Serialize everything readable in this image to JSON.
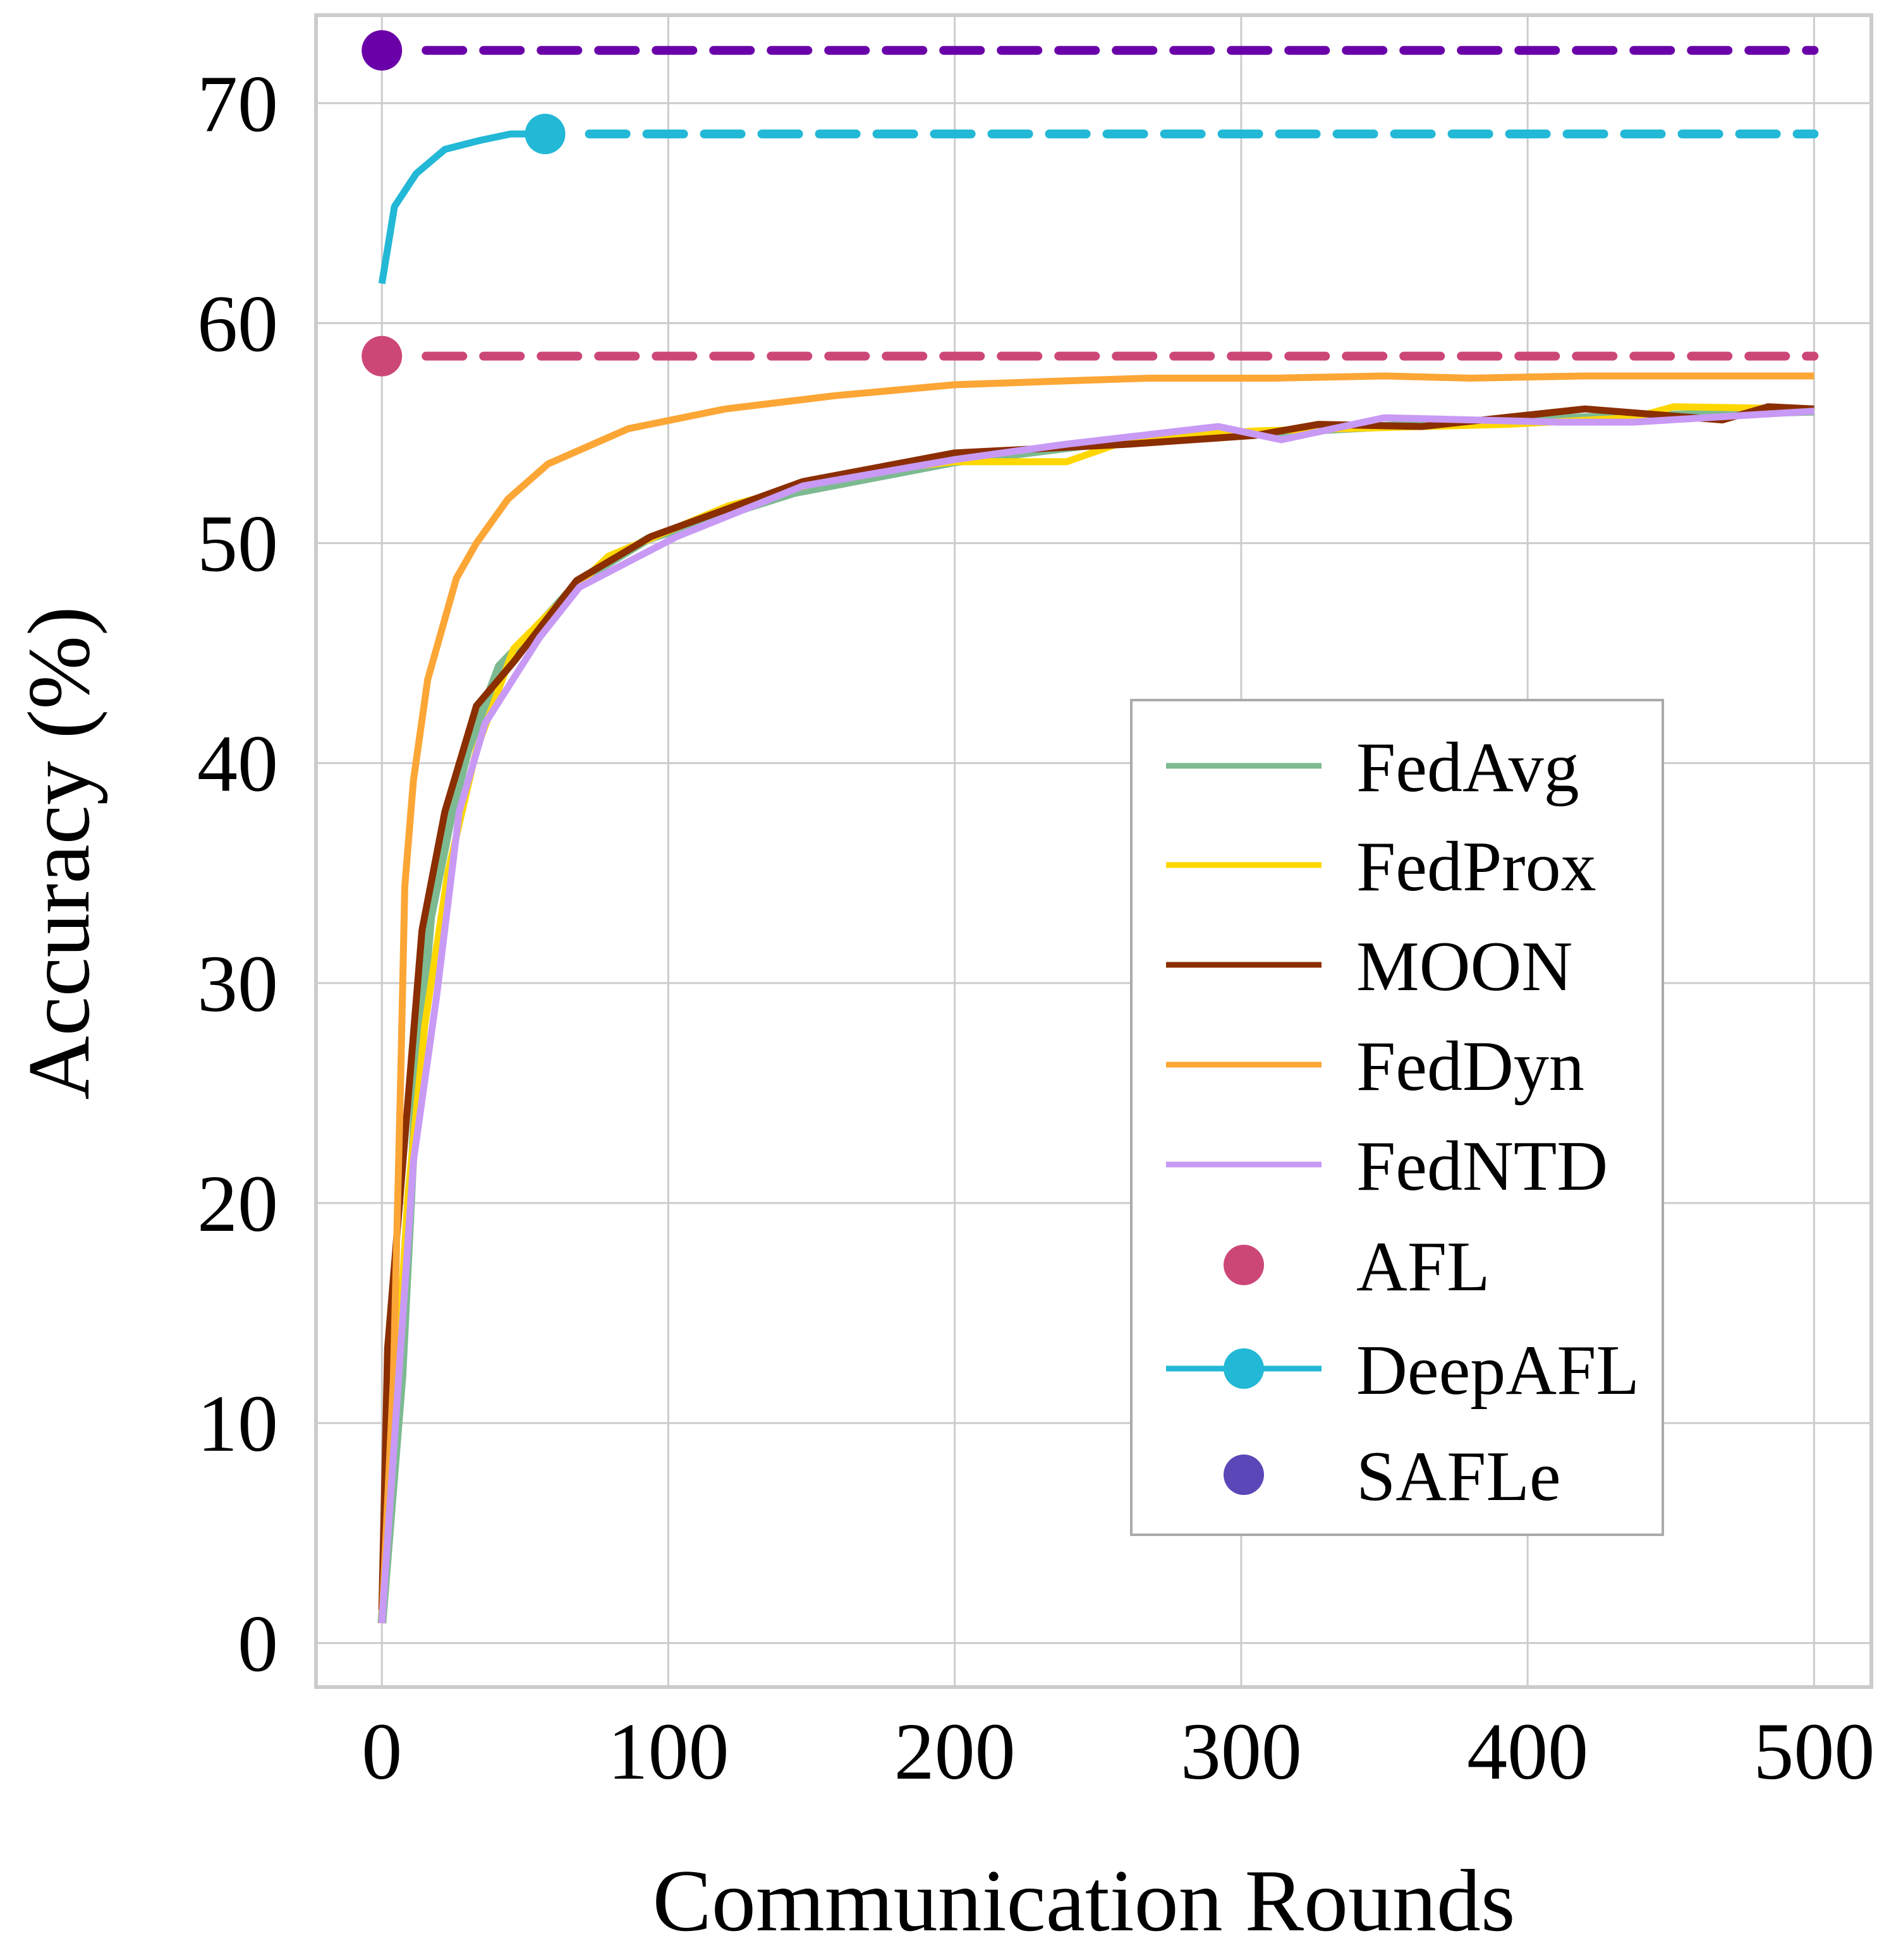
{
  "chart_data": {
    "type": "line",
    "title": "",
    "xlabel": "Communication Rounds",
    "ylabel": "Accuracy (%)",
    "xlim": [
      -23,
      520
    ],
    "ylim": [
      -2,
      74
    ],
    "xticks": [
      0,
      100,
      200,
      300,
      400,
      500
    ],
    "yticks": [
      0,
      10,
      20,
      30,
      40,
      50,
      60,
      70
    ],
    "grid": true,
    "legend_position": "center-right",
    "series": [
      {
        "name": "FedAvg",
        "color": "#7dba91",
        "style": "line",
        "points": [
          [
            0,
            0.9
          ],
          [
            7,
            12.2
          ],
          [
            12,
            25.3
          ],
          [
            17,
            33
          ],
          [
            24,
            37.5
          ],
          [
            30,
            40.6
          ],
          [
            41,
            44.4
          ],
          [
            55,
            46.3
          ],
          [
            69,
            48.3
          ],
          [
            93,
            50.2
          ],
          [
            144,
            52.3
          ],
          [
            200,
            53.7
          ],
          [
            261,
            54.7
          ],
          [
            305,
            55
          ],
          [
            363,
            55.4
          ],
          [
            420,
            55.7
          ],
          [
            500,
            56
          ]
        ]
      },
      {
        "name": "FedProx",
        "color": "#ffd700",
        "style": "line",
        "points": [
          [
            0,
            0.9
          ],
          [
            9,
            20.2
          ],
          [
            15,
            28.1
          ],
          [
            23,
            35
          ],
          [
            33,
            40.6
          ],
          [
            46,
            45.2
          ],
          [
            59,
            46.9
          ],
          [
            79,
            49.4
          ],
          [
            121,
            51.7
          ],
          [
            165,
            53.2
          ],
          [
            200,
            53.7
          ],
          [
            239,
            53.7
          ],
          [
            261,
            54.7
          ],
          [
            305,
            55.1
          ],
          [
            393,
            55.4
          ],
          [
            437,
            55.7
          ],
          [
            451,
            56.2
          ],
          [
            500,
            56.1
          ]
        ]
      },
      {
        "name": "MOON",
        "color": "#8b2e00",
        "style": "line",
        "points": [
          [
            0,
            1.5
          ],
          [
            2,
            13.4
          ],
          [
            14,
            32.4
          ],
          [
            22,
            37.8
          ],
          [
            33,
            42.6
          ],
          [
            46,
            44.6
          ],
          [
            68,
            48.3
          ],
          [
            94,
            50.3
          ],
          [
            147,
            52.8
          ],
          [
            200,
            54.1
          ],
          [
            261,
            54.5
          ],
          [
            305,
            54.9
          ],
          [
            327,
            55.4
          ],
          [
            363,
            55.3
          ],
          [
            420,
            56.1
          ],
          [
            468,
            55.6
          ],
          [
            484,
            56.2
          ],
          [
            500,
            56.1
          ]
        ]
      },
      {
        "name": "FedDyn",
        "color": "#fca636",
        "style": "line",
        "points": [
          [
            0,
            0.9
          ],
          [
            4,
            12
          ],
          [
            6.6,
            25.9
          ],
          [
            8,
            34.4
          ],
          [
            11,
            39.2
          ],
          [
            16,
            43.8
          ],
          [
            26,
            48.4
          ],
          [
            33,
            50
          ],
          [
            44,
            52
          ],
          [
            58,
            53.6
          ],
          [
            86,
            55.2
          ],
          [
            120,
            56.1
          ],
          [
            158,
            56.7
          ],
          [
            200,
            57.2
          ],
          [
            244,
            57.4
          ],
          [
            268,
            57.5
          ],
          [
            312,
            57.5
          ],
          [
            350,
            57.6
          ],
          [
            380,
            57.5
          ],
          [
            420,
            57.6
          ],
          [
            500,
            57.6
          ]
        ]
      },
      {
        "name": "FedNTD",
        "color": "#c89af5",
        "style": "line",
        "points": [
          [
            0,
            0.9
          ],
          [
            11,
            21.9
          ],
          [
            19,
            29.3
          ],
          [
            27,
            37.8
          ],
          [
            36,
            41.8
          ],
          [
            55,
            45.7
          ],
          [
            69,
            48
          ],
          [
            103,
            50.3
          ],
          [
            147,
            52.6
          ],
          [
            200,
            53.8
          ],
          [
            239,
            54.5
          ],
          [
            292,
            55.3
          ],
          [
            314,
            54.7
          ],
          [
            350,
            55.7
          ],
          [
            411,
            55.5
          ],
          [
            437,
            55.5
          ],
          [
            500,
            56
          ]
        ]
      },
      {
        "name": "AFL",
        "color": "#cc4778",
        "style": "marker-dashed",
        "points": [
          [
            0,
            58.5
          ]
        ]
      },
      {
        "name": "DeepAFL",
        "color": "#22b8d6",
        "style": "line-marker-dashed",
        "points": [
          [
            0,
            61.8
          ],
          [
            4.4,
            65.3
          ],
          [
            12,
            66.8
          ],
          [
            22,
            67.9
          ],
          [
            34,
            68.3
          ],
          [
            45,
            68.6
          ],
          [
            57,
            68.6
          ]
        ]
      },
      {
        "name": "SAFLe",
        "color": "#6a00a8",
        "legend_color": "#5c46b8",
        "style": "marker-dashed",
        "points": [
          [
            0,
            72.4
          ]
        ]
      }
    ]
  }
}
